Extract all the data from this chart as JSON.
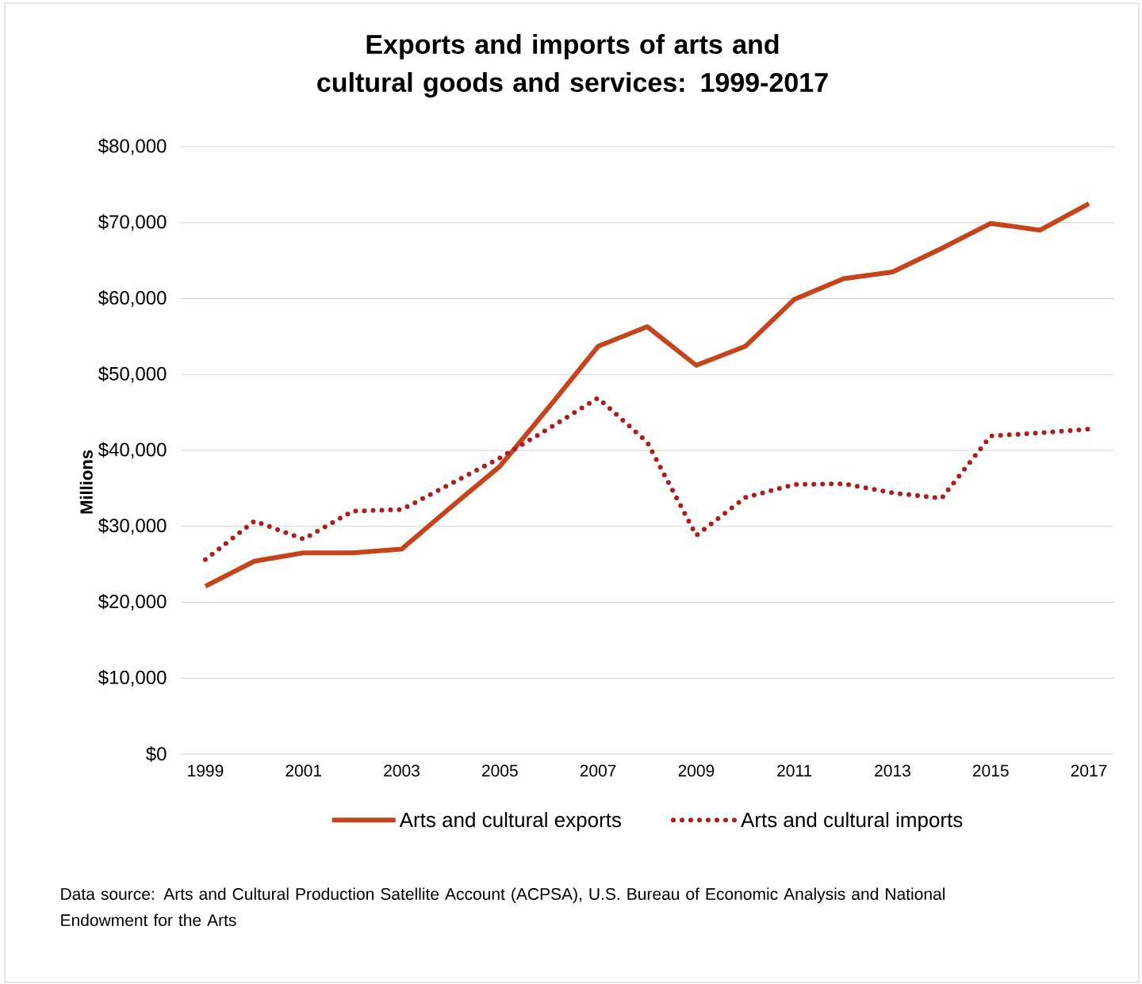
{
  "chart_data": {
    "type": "line",
    "title": "Exports and imports of arts and cultural goods and services: 1999-2017",
    "ylabel": "Millions",
    "x": [
      1999,
      2000,
      2001,
      2002,
      2003,
      2004,
      2005,
      2006,
      2007,
      2008,
      2009,
      2010,
      2011,
      2012,
      2013,
      2014,
      2015,
      2016,
      2017
    ],
    "series": [
      {
        "name": "Arts and cultural exports",
        "color": "#c5441c",
        "line_style": "solid",
        "values": [
          22100,
          25400,
          26500,
          26500,
          27000,
          32500,
          37900,
          45700,
          53700,
          56300,
          51200,
          53700,
          59900,
          62600,
          63500,
          66600,
          69900,
          69000,
          72500
        ]
      },
      {
        "name": "Arts and cultural imports",
        "color": "#b01c1c",
        "line_style": "dotted",
        "values": [
          25600,
          30700,
          28300,
          32000,
          32200,
          35600,
          39000,
          42900,
          46900,
          41100,
          28800,
          33800,
          35500,
          35600,
          34400,
          33700,
          41900,
          42300,
          42800
        ]
      }
    ],
    "xlim": [
      1998.5,
      2017.5
    ],
    "xticks": [
      1999,
      2001,
      2003,
      2005,
      2007,
      2009,
      2011,
      2013,
      2015,
      2017
    ],
    "ylim": [
      0,
      80000
    ],
    "yticks": [
      {
        "value": 0,
        "label": "$0"
      },
      {
        "value": 10000,
        "label": "$10,000"
      },
      {
        "value": 20000,
        "label": "$20,000"
      },
      {
        "value": 30000,
        "label": "$30,000"
      },
      {
        "value": 40000,
        "label": "$40,000"
      },
      {
        "value": 50000,
        "label": "$50,000"
      },
      {
        "value": 60000,
        "label": "$60,000"
      },
      {
        "value": 70000,
        "label": "$70,000"
      },
      {
        "value": 80000,
        "label": "$80,000"
      }
    ],
    "grid": "y",
    "legend": "bottom",
    "marker": "none",
    "annotations": [
      "Data source: Arts and Cultural Production Satellite Account (ACPSA), U.S. Bureau of Economic Analysis and National Endowment for the Arts"
    ]
  }
}
